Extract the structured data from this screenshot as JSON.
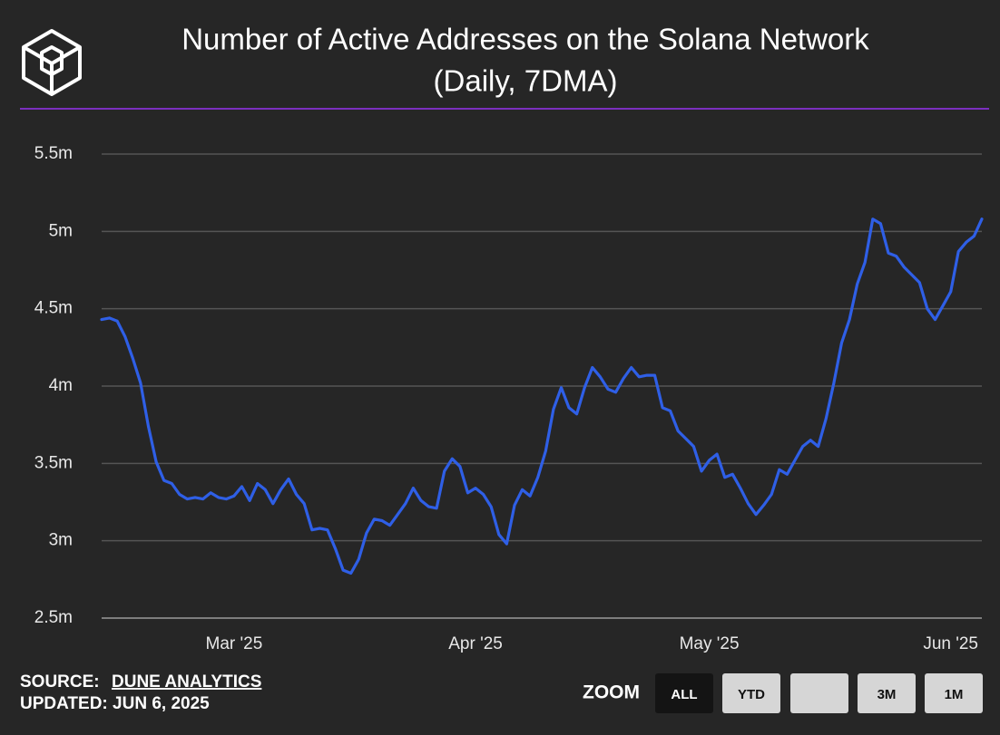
{
  "chart_data": {
    "type": "line",
    "title": "Number of Active Addresses on the Solana Network",
    "subtitle": "(Daily, 7DMA)",
    "categories": [
      null,
      null,
      null,
      null,
      null,
      null,
      null,
      null,
      null,
      null,
      null,
      null,
      null,
      null,
      null,
      null,
      null,
      "Mar '25",
      null,
      null,
      null,
      null,
      null,
      null,
      null,
      null,
      null,
      null,
      null,
      null,
      null,
      null,
      null,
      null,
      null,
      null,
      null,
      null,
      null,
      null,
      null,
      null,
      null,
      null,
      null,
      null,
      null,
      null,
      "Apr '25",
      null,
      null,
      null,
      null,
      null,
      null,
      null,
      null,
      null,
      null,
      null,
      null,
      null,
      null,
      null,
      null,
      null,
      null,
      null,
      null,
      null,
      null,
      null,
      null,
      null,
      null,
      null,
      null,
      null,
      "May '25",
      null,
      null,
      null,
      null,
      null,
      null,
      null,
      null,
      null,
      null,
      null,
      null,
      null,
      null,
      null,
      null,
      null,
      null,
      null,
      null,
      null,
      null,
      null,
      null,
      null,
      null,
      null,
      null,
      null,
      null,
      "Jun '25",
      null,
      null,
      null,
      null
    ],
    "series": [
      {
        "color": "#2f5fe6",
        "values": [
          4.43,
          4.44,
          4.42,
          4.32,
          4.18,
          4.02,
          3.74,
          3.51,
          3.39,
          3.37,
          3.3,
          3.27,
          3.28,
          3.27,
          3.31,
          3.28,
          3.27,
          3.29,
          3.35,
          3.26,
          3.37,
          3.33,
          3.24,
          3.33,
          3.4,
          3.3,
          3.24,
          3.07,
          3.08,
          3.07,
          2.95,
          2.81,
          2.79,
          2.88,
          3.05,
          3.14,
          3.13,
          3.1,
          3.17,
          3.24,
          3.34,
          3.26,
          3.22,
          3.21,
          3.45,
          3.53,
          3.48,
          3.31,
          3.34,
          3.3,
          3.22,
          3.04,
          2.98,
          3.23,
          3.33,
          3.29,
          3.41,
          3.58,
          3.85,
          3.99,
          3.86,
          3.82,
          3.99,
          4.12,
          4.06,
          3.98,
          3.96,
          4.05,
          4.12,
          4.06,
          4.07,
          4.07,
          3.86,
          3.84,
          3.71,
          3.66,
          3.61,
          3.45,
          3.52,
          3.56,
          3.41,
          3.43,
          3.34,
          3.24,
          3.17,
          3.23,
          3.3,
          3.46,
          3.43,
          3.52,
          3.61,
          3.65,
          3.61,
          3.79,
          4.02,
          4.28,
          4.43,
          4.66,
          4.8,
          5.08,
          5.05,
          4.86,
          4.84,
          4.77,
          4.72,
          4.67,
          4.5,
          4.43,
          4.52,
          4.61,
          4.87,
          4.93,
          4.97,
          5.08
        ]
      }
    ],
    "ylim": [
      2.5,
      5.5
    ],
    "yticks": [
      {
        "value": 2.5,
        "label": "2.5m"
      },
      {
        "value": 3,
        "label": "3m"
      },
      {
        "value": 3.5,
        "label": "3.5m"
      },
      {
        "value": 4,
        "label": "4m"
      },
      {
        "value": 4.5,
        "label": "4.5m"
      },
      {
        "value": 5,
        "label": "5m"
      },
      {
        "value": 5.5,
        "label": "5.5m"
      }
    ],
    "grid": true
  },
  "footer": {
    "source_label": "SOURCE:",
    "source": "DUNE ANALYTICS",
    "updated": "UPDATED: JUN 6, 2025"
  },
  "zoom": {
    "label": "ZOOM",
    "buttons": [
      "ALL",
      "YTD",
      "3M",
      "1M"
    ]
  }
}
